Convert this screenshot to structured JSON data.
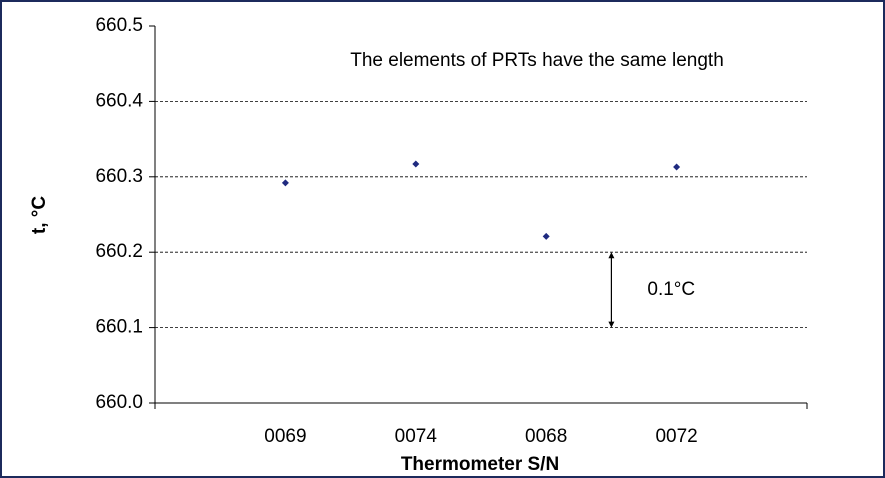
{
  "chart_data": {
    "type": "scatter",
    "categories": [
      "0069",
      "0074",
      "0068",
      "0072"
    ],
    "values": [
      660.292,
      660.317,
      660.221,
      660.313
    ],
    "color": "#1f2a80",
    "ylim": [
      660.0,
      660.5
    ],
    "yticks": [
      {
        "value": 660.0,
        "label": "660.0"
      },
      660.1,
      660.2,
      660.3,
      660.4,
      660.5
    ],
    "grid": true,
    "ylabel": "t, °C",
    "xlabel": "Thermometer S/N",
    "annotation": "The elements of PRTs have the same length",
    "span": {
      "from": 660.1,
      "to": 660.2,
      "label": "0.1°C"
    }
  }
}
